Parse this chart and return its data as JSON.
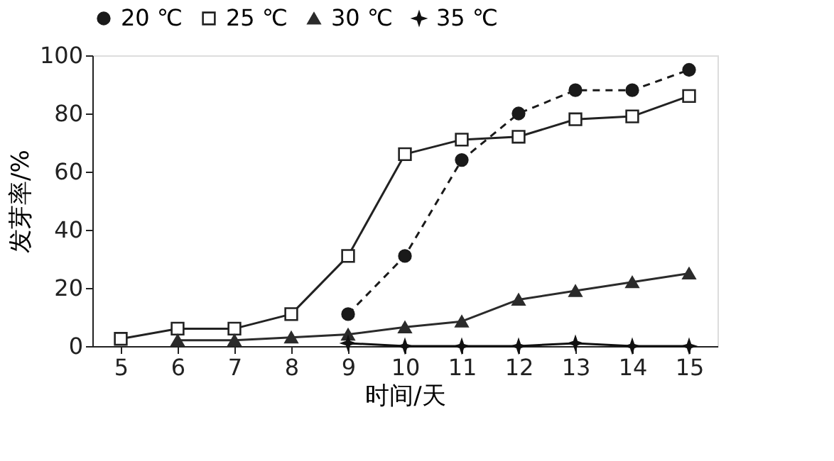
{
  "chart_data": {
    "type": "line",
    "xlabel": "时间/天",
    "ylabel": "发芽率/%",
    "x": [
      5,
      6,
      7,
      8,
      9,
      10,
      11,
      12,
      13,
      14,
      15
    ],
    "series": [
      {
        "name": "20 ℃",
        "color": "#1a1a1a",
        "marker": "circle",
        "line_style": "dashed",
        "values": [
          null,
          null,
          null,
          null,
          11,
          31,
          64,
          80,
          88,
          88,
          95
        ]
      },
      {
        "name": "25 ℃",
        "color": "#222222",
        "marker": "square",
        "line_style": "solid",
        "values": [
          2.5,
          6,
          6,
          11,
          31,
          66,
          71,
          72,
          78,
          79,
          86
        ]
      },
      {
        "name": "30 ℃",
        "color": "#2b2b2b",
        "marker": "triangle",
        "line_style": "solid",
        "values": [
          null,
          2,
          2,
          3,
          4,
          6.5,
          8.5,
          16,
          19,
          22,
          25
        ]
      },
      {
        "name": "35 ℃",
        "color": "#111111",
        "marker": "star",
        "line_style": "solid",
        "values": [
          null,
          null,
          null,
          null,
          1,
          0,
          0,
          0,
          1,
          0,
          0
        ]
      }
    ],
    "xlim": [
      4.5,
      15.5
    ],
    "xticks": [
      5,
      6,
      7,
      8,
      9,
      10,
      11,
      12,
      13,
      14,
      15
    ],
    "ylim": [
      0,
      100
    ],
    "yticks": [
      0,
      20,
      40,
      60,
      80,
      100
    ],
    "grid": false,
    "legend": "top"
  }
}
